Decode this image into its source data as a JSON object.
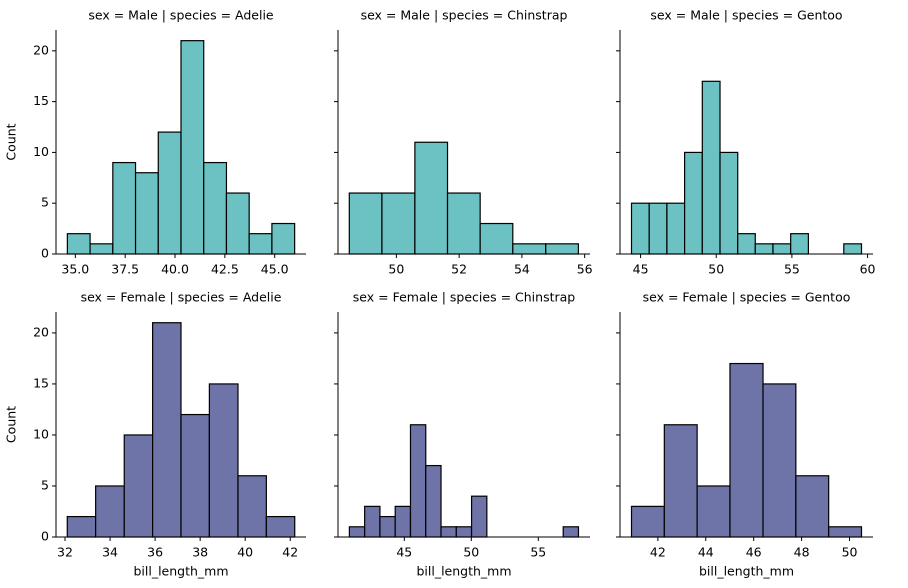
{
  "chart_data": [
    {
      "type": "histogram",
      "title": "sex = Male | species = Adelie",
      "ylabel": "Count",
      "color": "#6cc2c2",
      "bins": [
        34.6,
        35.74,
        36.88,
        38.02,
        39.16,
        40.3,
        41.44,
        42.58,
        43.72,
        44.86,
        46.0
      ],
      "values": [
        2,
        1,
        9,
        8,
        12,
        21,
        9,
        6,
        2,
        3
      ],
      "xlim": [
        34.03,
        46.57
      ],
      "xticks": [
        {
          "value": 35,
          "label": "35.0"
        },
        {
          "value": 37.5,
          "label": "37.5"
        },
        {
          "value": 40,
          "label": "40.0"
        },
        {
          "value": 42.5,
          "label": "42.5"
        },
        {
          "value": 45,
          "label": "45.0"
        }
      ],
      "ylim": [
        0,
        22.05
      ],
      "yticks": [
        0,
        5,
        10,
        15,
        20
      ]
    },
    {
      "type": "histogram",
      "title": "sex = Male | species = Chinstrap",
      "color": "#6cc2c2",
      "bins": [
        48.5,
        49.54,
        50.59,
        51.63,
        52.67,
        53.71,
        54.76,
        55.8
      ],
      "values": [
        6,
        6,
        11,
        6,
        3,
        1,
        1
      ],
      "xlim": [
        48.14,
        56.17
      ],
      "xticks": [
        50,
        52,
        54,
        56
      ],
      "ylim": [
        0,
        22.05
      ],
      "yticks": [
        0,
        5,
        10,
        15,
        20
      ]
    },
    {
      "type": "histogram",
      "title": "sex = Male | species = Gentoo",
      "color": "#6cc2c2",
      "bins": [
        44.4,
        45.57,
        46.74,
        47.91,
        49.08,
        50.25,
        51.42,
        52.58,
        53.75,
        54.92,
        56.09,
        57.26,
        58.43,
        59.6
      ],
      "values": [
        5,
        5,
        5,
        10,
        17,
        10,
        2,
        1,
        1,
        2,
        0,
        0,
        1
      ],
      "xlim": [
        43.64,
        60.36
      ],
      "xticks": [
        45,
        50,
        55,
        60
      ],
      "ylim": [
        0,
        22.05
      ],
      "yticks": [
        0,
        5,
        10,
        15,
        20
      ]
    },
    {
      "type": "histogram",
      "title": "sex = Female | species = Adelie",
      "ylabel": "Count",
      "xlabel": "bill_length_mm",
      "color": "#6f74a8",
      "bins": [
        32.1,
        33.36,
        34.63,
        35.89,
        37.15,
        38.41,
        39.68,
        40.94,
        42.2
      ],
      "values": [
        2,
        5,
        10,
        21,
        12,
        15,
        6,
        2
      ],
      "xlim": [
        31.6,
        42.7
      ],
      "xticks": [
        32,
        34,
        36,
        38,
        40,
        42
      ],
      "ylim": [
        0,
        22.05
      ],
      "yticks": [
        0,
        5,
        10,
        15,
        20
      ]
    },
    {
      "type": "histogram",
      "title": "sex = Female | species = Chinstrap",
      "xlabel": "bill_length_mm",
      "color": "#6f74a8",
      "bins": [
        40.9,
        42.04,
        43.18,
        44.32,
        45.46,
        46.6,
        47.74,
        48.88,
        50.02,
        51.16,
        52.3,
        53.44,
        54.58,
        55.72,
        56.86,
        58.0
      ],
      "values": [
        1,
        3,
        2,
        3,
        11,
        7,
        1,
        1,
        4,
        0,
        0,
        0,
        0,
        0,
        1
      ],
      "xlim": [
        40.05,
        58.86
      ],
      "xticks": [
        45,
        50,
        55
      ],
      "ylim": [
        0,
        22.05
      ],
      "yticks": [
        0,
        5,
        10,
        15,
        20
      ]
    },
    {
      "type": "histogram",
      "title": "sex = Female | species = Gentoo",
      "xlabel": "bill_length_mm",
      "color": "#6f74a8",
      "bins": [
        40.9,
        42.27,
        43.64,
        45.01,
        46.39,
        47.76,
        49.13,
        50.5
      ],
      "values": [
        3,
        11,
        5,
        17,
        15,
        6,
        1
      ],
      "xlim": [
        40.42,
        50.98
      ],
      "xticks": [
        42,
        44,
        46,
        48,
        50
      ],
      "ylim": [
        0,
        22.05
      ],
      "yticks": [
        0,
        5,
        10,
        15,
        20
      ]
    }
  ]
}
